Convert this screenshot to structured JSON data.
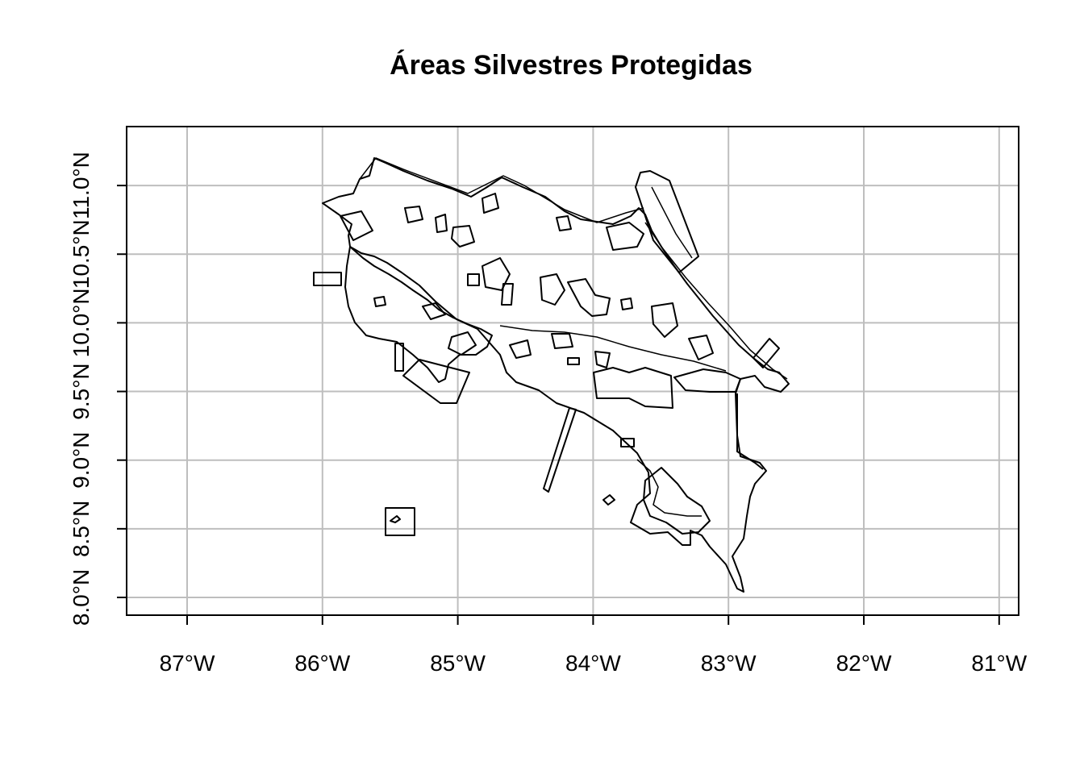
{
  "title": "Áreas Silvestres Protegidas",
  "x_axis": {
    "ticks": [
      {
        "value": -87,
        "label": "87°W"
      },
      {
        "value": -86,
        "label": "86°W"
      },
      {
        "value": -85,
        "label": "85°W"
      },
      {
        "value": -84,
        "label": "84°W"
      },
      {
        "value": -83,
        "label": "83°W"
      },
      {
        "value": -82,
        "label": "82°W"
      },
      {
        "value": -81,
        "label": "81°W"
      }
    ]
  },
  "y_axis": {
    "ticks": [
      {
        "value": 8.0,
        "label": "8.0°N"
      },
      {
        "value": 8.5,
        "label": "8.5°N"
      },
      {
        "value": 9.0,
        "label": "9.0°N"
      },
      {
        "value": 9.5,
        "label": "9.5°N"
      },
      {
        "value": 10.0,
        "label": "10.0°N"
      },
      {
        "value": 10.5,
        "label": "10.5°N"
      },
      {
        "value": 11.0,
        "label": "11.0°N"
      }
    ]
  },
  "colors": {
    "outline": "#000000",
    "grid": "#bebebe",
    "background": "#ffffff"
  },
  "grid": true
}
